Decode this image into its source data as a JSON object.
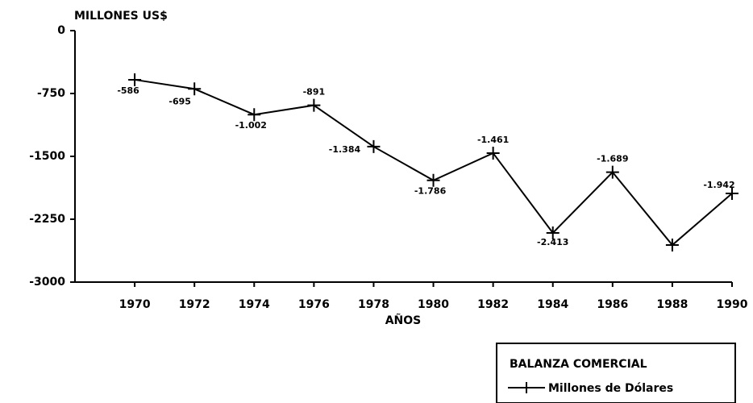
{
  "chart_data": {
    "type": "line",
    "y_label": "MILLONES US$",
    "x_label": "AÑOS",
    "legend_title": "BALANZA COMERCIAL",
    "x": [
      1970,
      1972,
      1974,
      1976,
      1978,
      1980,
      1982,
      1984,
      1986,
      1988,
      1990
    ],
    "series": [
      {
        "name": "Millones de Dólares",
        "color": "#000000",
        "values": [
          -586,
          -695,
          -1002,
          -891,
          -1384,
          -1786,
          -1461,
          -2413,
          -1689,
          -2558,
          -1942
        ],
        "value_labels": [
          "-586",
          "-695",
          "-1.002",
          "-891",
          "-1.384",
          "-1.786",
          "-1.461",
          "-2.413",
          "-1.689",
          null,
          "-1.942"
        ]
      }
    ],
    "xlim": [
      1968,
      1990
    ],
    "xticks": [
      1970,
      1972,
      1974,
      1976,
      1978,
      1980,
      1982,
      1984,
      1986,
      1988,
      1990
    ],
    "ylim": [
      -3000,
      0
    ],
    "yticks": [
      0,
      -750,
      -1500,
      -2250,
      -3000
    ],
    "grid": false,
    "legend": "lower right"
  }
}
